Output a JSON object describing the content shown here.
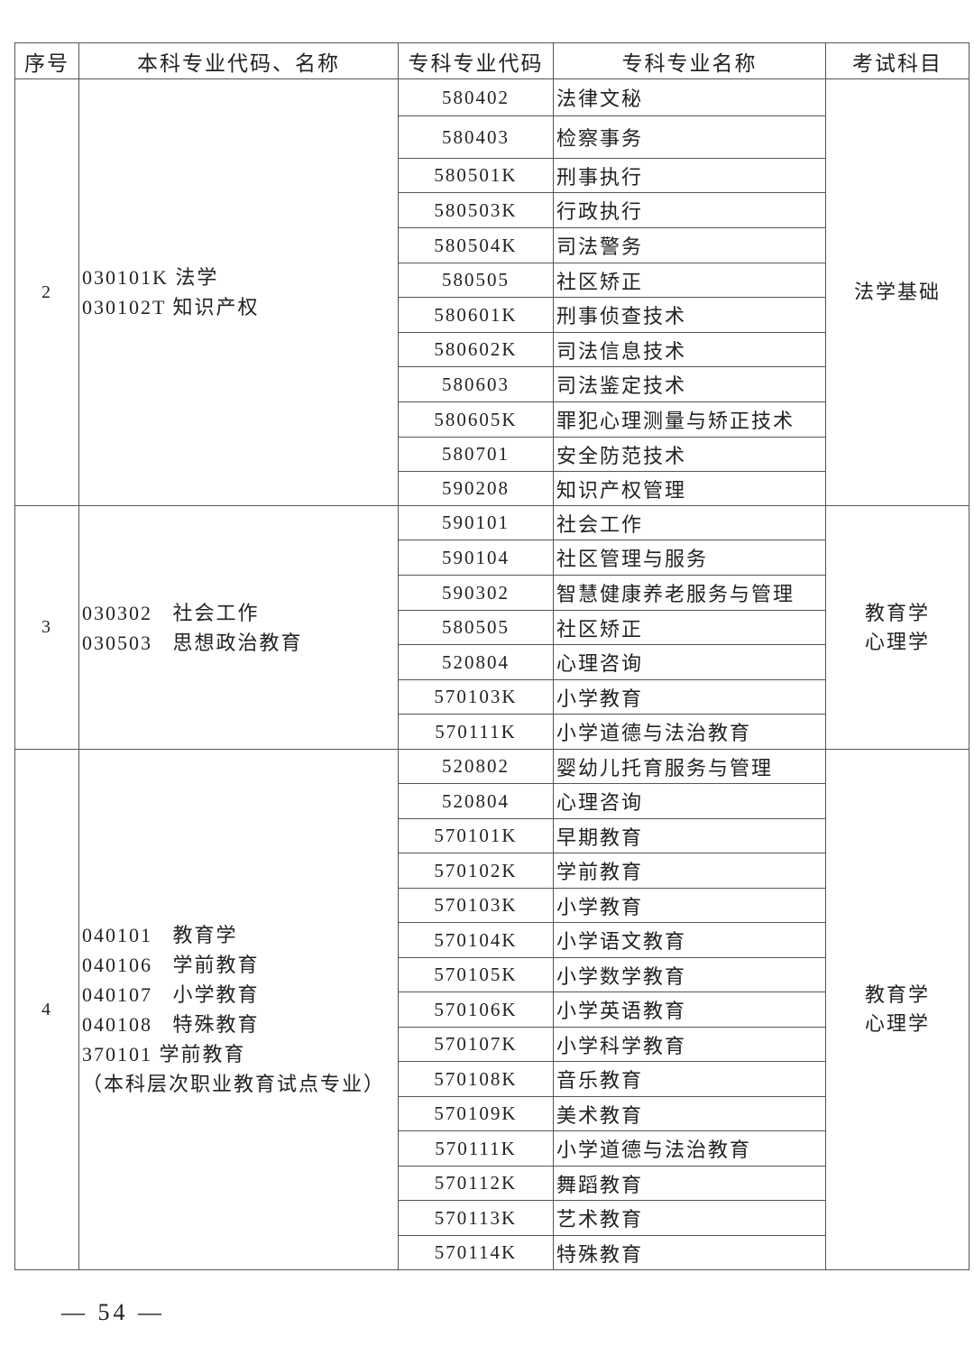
{
  "table": {
    "headers": [
      "序号",
      "本科专业代码、名称",
      "专科专业代码",
      "专科专业名称",
      "考试科目"
    ],
    "groups": [
      {
        "seq": "2",
        "undergrad": [
          "030101K 法学",
          "030102T 知识产权"
        ],
        "subjects": [
          "法学基础"
        ],
        "rows": [
          {
            "code": "580402",
            "name": "法律文秘"
          },
          {
            "code": "580403",
            "name": "检察事务"
          },
          {
            "code": "580501K",
            "name": "刑事执行"
          },
          {
            "code": "580503K",
            "name": "行政执行"
          },
          {
            "code": "580504K",
            "name": "司法警务"
          },
          {
            "code": "580505",
            "name": "社区矫正"
          },
          {
            "code": "580601K",
            "name": "刑事侦查技术"
          },
          {
            "code": "580602K",
            "name": "司法信息技术"
          },
          {
            "code": "580603",
            "name": "司法鉴定技术"
          },
          {
            "code": "580605K",
            "name": "罪犯心理测量与矫正技术"
          },
          {
            "code": "580701",
            "name": "安全防范技术"
          },
          {
            "code": "590208",
            "name": "知识产权管理"
          }
        ]
      },
      {
        "seq": "3",
        "undergrad": [
          "030302   社会工作",
          "030503   思想政治教育"
        ],
        "subjects": [
          "教育学",
          "心理学"
        ],
        "rows": [
          {
            "code": "590101",
            "name": "社会工作"
          },
          {
            "code": "590104",
            "name": "社区管理与服务"
          },
          {
            "code": "590302",
            "name": "智慧健康养老服务与管理"
          },
          {
            "code": "580505",
            "name": "社区矫正"
          },
          {
            "code": "520804",
            "name": "心理咨询"
          },
          {
            "code": "570103K",
            "name": "小学教育"
          },
          {
            "code": "570111K",
            "name": "小学道德与法治教育"
          }
        ]
      },
      {
        "seq": "4",
        "undergrad": [
          "040101   教育学",
          "040106   学前教育",
          "040107   小学教育",
          "040108   特殊教育",
          "370101 学前教育",
          "（本科层次职业教育试点专业）"
        ],
        "subjects": [
          "教育学",
          "心理学"
        ],
        "rows": [
          {
            "code": "520802",
            "name": "婴幼儿托育服务与管理"
          },
          {
            "code": "520804",
            "name": "心理咨询"
          },
          {
            "code": "570101K",
            "name": "早期教育"
          },
          {
            "code": "570102K",
            "name": "学前教育"
          },
          {
            "code": "570103K",
            "name": "小学教育"
          },
          {
            "code": "570104K",
            "name": "小学语文教育"
          },
          {
            "code": "570105K",
            "name": "小学数学教育"
          },
          {
            "code": "570106K",
            "name": "小学英语教育"
          },
          {
            "code": "570107K",
            "name": "小学科学教育"
          },
          {
            "code": "570108K",
            "name": "音乐教育"
          },
          {
            "code": "570109K",
            "name": "美术教育"
          },
          {
            "code": "570111K",
            "name": "小学道德与法治教育"
          },
          {
            "code": "570112K",
            "name": "舞蹈教育"
          },
          {
            "code": "570113K",
            "name": "艺术教育"
          },
          {
            "code": "570114K",
            "name": "特殊教育"
          }
        ]
      }
    ]
  },
  "footer": {
    "page_number": "— 54 —"
  }
}
